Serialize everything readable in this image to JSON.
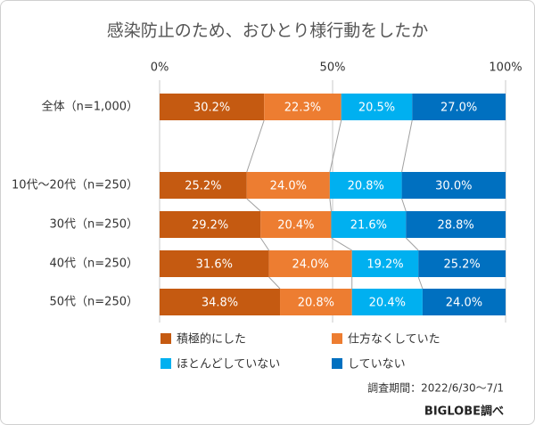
{
  "chart_data": {
    "type": "stacked-bar-horizontal",
    "title": "感染防止のため、おひとり様行動をしたか",
    "categories": [
      "全体（n=1,000）",
      "10代～20代（n=250）",
      "30代（n=250）",
      "40代（n=250）",
      "50代（n=250）"
    ],
    "series": [
      {
        "name": "積極的にした",
        "color": "#c55a11",
        "values": [
          30.2,
          25.2,
          29.2,
          31.6,
          34.8
        ],
        "value_labels": [
          "30.2%",
          "25.2%",
          "29.2%",
          "31.6%",
          "34.8%"
        ]
      },
      {
        "name": "仕方なくしていた",
        "color": "#ed7d31",
        "values": [
          22.3,
          24.0,
          20.4,
          24.0,
          20.8
        ],
        "value_labels": [
          "22.3%",
          "24.0%",
          "20.4%",
          "24.0%",
          "20.8%"
        ]
      },
      {
        "name": "ほとんどしていない",
        "color": "#00b0f0",
        "values": [
          20.5,
          20.8,
          21.6,
          19.2,
          20.4
        ],
        "value_labels": [
          "20.5%",
          "20.8%",
          "21.6%",
          "19.2%",
          "20.4%"
        ]
      },
      {
        "name": "していない",
        "color": "#0070c0",
        "values": [
          27.0,
          30.0,
          28.8,
          25.2,
          24.0
        ],
        "value_labels": [
          "27.0%",
          "30.0%",
          "28.8%",
          "25.2%",
          "24.0%"
        ]
      }
    ],
    "xlim": [
      0,
      100
    ],
    "xticks": [
      {
        "value": 0,
        "label": "0%"
      },
      {
        "value": 50,
        "label": "50%"
      },
      {
        "value": 100,
        "label": "100%"
      }
    ],
    "grid": true,
    "notes": [
      "調査期間：2022/6/30〜7/1",
      "BIGLOBE調べ"
    ]
  }
}
